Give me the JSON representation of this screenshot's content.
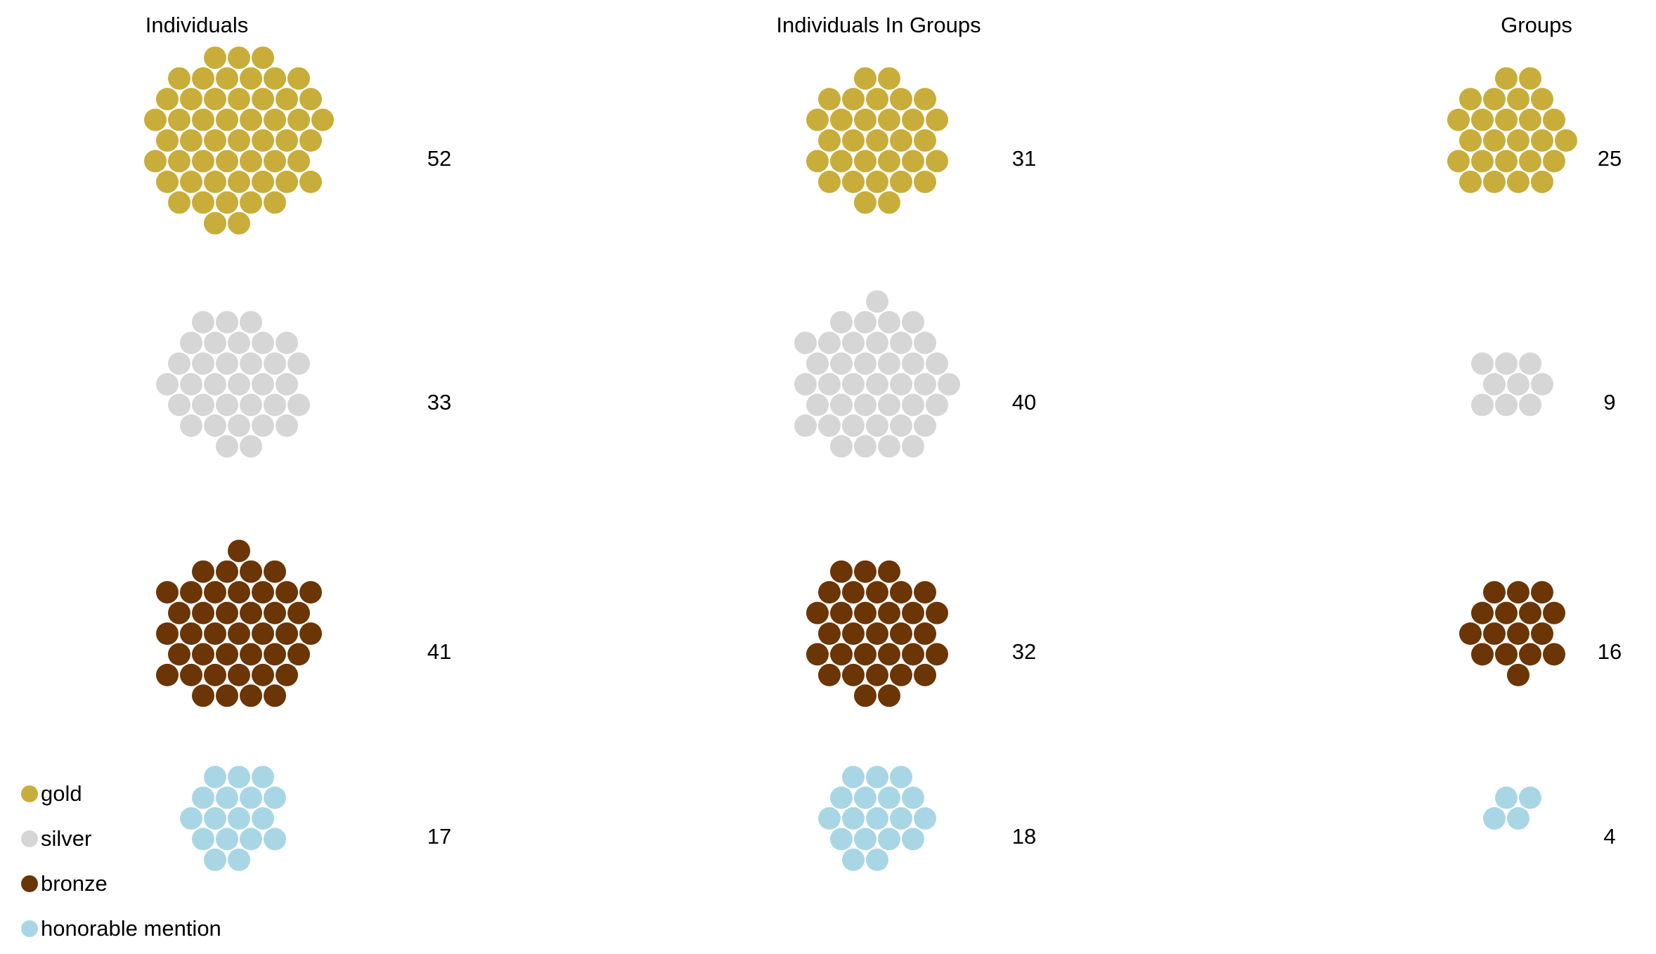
{
  "chart_data": {
    "type": "packed-bubble",
    "columns": [
      "Individuals",
      "Individuals In Groups",
      "Groups"
    ],
    "categories": [
      "gold",
      "silver",
      "bronze",
      "honorable mention"
    ],
    "series": [
      {
        "name": "gold",
        "color": "#c9ad3a",
        "values": [
          52,
          31,
          25
        ]
      },
      {
        "name": "silver",
        "color": "#d6d6d6",
        "values": [
          33,
          40,
          9
        ]
      },
      {
        "name": "bronze",
        "color": "#6b3506",
        "values": [
          41,
          32,
          16
        ]
      },
      {
        "name": "honorable mention",
        "color": "#a9d6e5",
        "values": [
          17,
          18,
          4
        ]
      }
    ],
    "legend": {
      "position": "bottom-left",
      "items": [
        "gold",
        "silver",
        "bronze",
        "honorable mention"
      ]
    }
  }
}
